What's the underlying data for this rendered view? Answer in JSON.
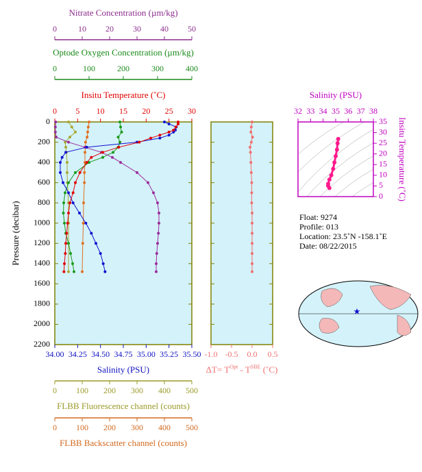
{
  "chart_data": [
    {
      "type": "profile",
      "ylabel": "Pressure (decibar)",
      "ylim": [
        0,
        2200
      ],
      "yticks": [
        0,
        200,
        400,
        600,
        800,
        1000,
        1200,
        1400,
        1600,
        1800,
        2000,
        2200
      ],
      "background": "#d4f2fa",
      "frame_color": "#808000",
      "axes": [
        {
          "label": "Insitu Temperature (˚C)",
          "color": "#e00000",
          "position": "top",
          "xlim": [
            0,
            30
          ],
          "xticks": [
            0,
            5,
            10,
            15,
            20,
            25,
            30
          ]
        },
        {
          "label": "Optode Oxygen Concentration (µm/kg)",
          "color": "#1a8a1a",
          "position": "top",
          "xlim": [
            0,
            400
          ],
          "xticks": [
            0,
            100,
            200,
            300,
            400
          ]
        },
        {
          "label": "Nitrate Concentration (µm/kg)",
          "color": "#8b2c8b",
          "position": "top",
          "xlim": [
            0,
            50
          ],
          "xticks": [
            0,
            10,
            20,
            30,
            40,
            50
          ]
        },
        {
          "label": "Salinity (PSU)",
          "color": "#1010c0",
          "position": "bottom",
          "xlim": [
            34,
            35.5
          ],
          "xticks": [
            {
              "value": 34,
              "label": "34.00"
            },
            34.25,
            {
              "value": 34.5,
              "label": "34.50"
            },
            34.75,
            {
              "value": 35,
              "label": "35.00"
            },
            35.25,
            {
              "value": 35.5,
              "label": "35.50"
            }
          ]
        },
        {
          "label": "FLBB Fluorescence channel (counts)",
          "color": "#9a9a2a",
          "position": "bottom",
          "xlim": [
            0,
            500
          ],
          "xticks": [
            0,
            100,
            200,
            300,
            400,
            500
          ]
        },
        {
          "label": "FLBB Backscatter channel (counts)",
          "color": "#d2691e",
          "position": "bottom",
          "xlim": [
            0,
            500
          ],
          "xticks": [
            0,
            100,
            200,
            300,
            400,
            500
          ]
        }
      ],
      "series": [
        {
          "axis": 5,
          "color": "#e07020",
          "pressure": [
            0,
            50,
            100,
            150,
            200,
            250,
            300,
            400,
            500,
            600,
            800,
            1000,
            1200,
            1480
          ],
          "values": [
            125,
            122,
            120,
            118,
            112,
            112,
            110,
            110,
            108,
            108,
            105,
            104,
            102,
            100
          ]
        },
        {
          "axis": 4,
          "color": "#a8a830",
          "pressure": [
            0,
            50,
            100,
            150,
            200,
            250,
            300,
            400,
            500,
            600,
            800,
            1000,
            1200,
            1480
          ],
          "values": [
            50,
            62,
            75,
            55,
            38,
            40,
            42,
            45,
            45,
            46,
            50,
            50,
            50,
            50
          ]
        },
        {
          "axis": 1,
          "color": "#1a9a1a",
          "pressure": [
            0,
            50,
            100,
            150,
            200,
            250,
            300,
            350,
            400,
            500,
            600,
            700,
            800,
            900,
            1000,
            1100,
            1200,
            1300,
            1400,
            1480
          ],
          "values": [
            190,
            192,
            195,
            185,
            190,
            185,
            170,
            140,
            100,
            60,
            40,
            30,
            26,
            25,
            28,
            32,
            40,
            46,
            52,
            56
          ]
        },
        {
          "axis": 2,
          "color": "#9a2c9a",
          "pressure": [
            0,
            50,
            100,
            150,
            200,
            250,
            300,
            350,
            400,
            500,
            600,
            700,
            800,
            900,
            1000,
            1100,
            1200,
            1300,
            1400,
            1480
          ],
          "values": [
            0.3,
            0.2,
            0.2,
            0.5,
            5,
            11,
            17,
            21,
            24,
            30,
            34,
            36,
            37.5,
            38,
            38,
            37.8,
            37.5,
            37.2,
            37,
            37
          ]
        },
        {
          "axis": 3,
          "color": "#1010d0",
          "pressure": [
            0,
            20,
            50,
            80,
            100,
            130,
            160,
            200,
            250,
            300,
            350,
            400,
            500,
            600,
            700,
            800,
            900,
            1000,
            1100,
            1200,
            1300,
            1400,
            1480
          ],
          "values": [
            35.2,
            35.25,
            35.33,
            35.32,
            35.3,
            35.25,
            35.15,
            34.9,
            34.35,
            34.12,
            34.08,
            34.06,
            34.06,
            34.09,
            34.15,
            34.2,
            34.27,
            34.34,
            34.4,
            34.45,
            34.5,
            34.53,
            34.55
          ]
        },
        {
          "axis": 0,
          "color": "#e00000",
          "pressure": [
            0,
            20,
            50,
            80,
            100,
            130,
            160,
            200,
            250,
            300,
            350,
            400,
            500,
            600,
            700,
            800,
            900,
            1000,
            1100,
            1200,
            1300,
            1400,
            1480
          ],
          "values": [
            27,
            27,
            26.5,
            26,
            25,
            23,
            21,
            18.5,
            14,
            10.5,
            8,
            7,
            5.5,
            4.5,
            4,
            3.3,
            3,
            2.8,
            2.6,
            2.4,
            2.3,
            2.1,
            2
          ]
        }
      ]
    },
    {
      "type": "profile",
      "ylim": [
        0,
        2200
      ],
      "yticks": [
        0,
        200,
        400,
        600,
        800,
        1000,
        1200,
        1400,
        1600,
        1800,
        2000,
        2200
      ],
      "background": "#d4f2fa",
      "frame_color": "#808000",
      "axes": [
        {
          "label": [
            "ΔT= T",
            "Opt",
            " - T",
            "SBE",
            " (˚C)"
          ],
          "color": "#f07070",
          "position": "bottom",
          "xlim": [
            -1,
            0.5
          ],
          "xticks": [
            {
              "value": -1,
              "label": "-1.0"
            },
            -0.5,
            {
              "value": 0,
              "label": "0.0"
            },
            0.5
          ]
        }
      ],
      "series": [
        {
          "axis": 0,
          "color": "#f07070",
          "pressure": [
            0,
            50,
            100,
            150,
            200,
            250,
            300,
            400,
            500,
            600,
            700,
            800,
            900,
            1000,
            1100,
            1200,
            1300,
            1400,
            1480
          ],
          "values": [
            0.0,
            -0.02,
            -0.03,
            0.01,
            -0.02,
            -0.05,
            -0.04,
            -0.03,
            -0.02,
            -0.01,
            -0.01,
            -0.01,
            0,
            0,
            0,
            0,
            0,
            0,
            0
          ]
        }
      ]
    },
    {
      "type": "ts",
      "xlabel": "Salinity (PSU)",
      "ylabel": "Insitu Temperature (˚C)",
      "color": "#c000c0",
      "xlim": [
        32,
        38
      ],
      "xticks": [
        32,
        33,
        34,
        35,
        36,
        37,
        38
      ],
      "ylim": [
        0,
        35
      ],
      "yticks": [
        0,
        5,
        10,
        15,
        20,
        25,
        30,
        35
      ],
      "series": [
        {
          "color": "#ff1a8c",
          "x": [
            35.2,
            35.15,
            35.1,
            35.0,
            34.9,
            34.8,
            34.65,
            34.5,
            34.4,
            34.4,
            34.5
          ],
          "y": [
            27,
            25,
            22,
            19,
            16,
            13,
            10,
            8,
            6,
            5,
            4
          ]
        }
      ]
    }
  ],
  "float_info": [
    "Float:  9274",
    "Profile:  013",
    "Location:  23.5˚N  -158.1˚E",
    "Date:  08/22/2015"
  ]
}
